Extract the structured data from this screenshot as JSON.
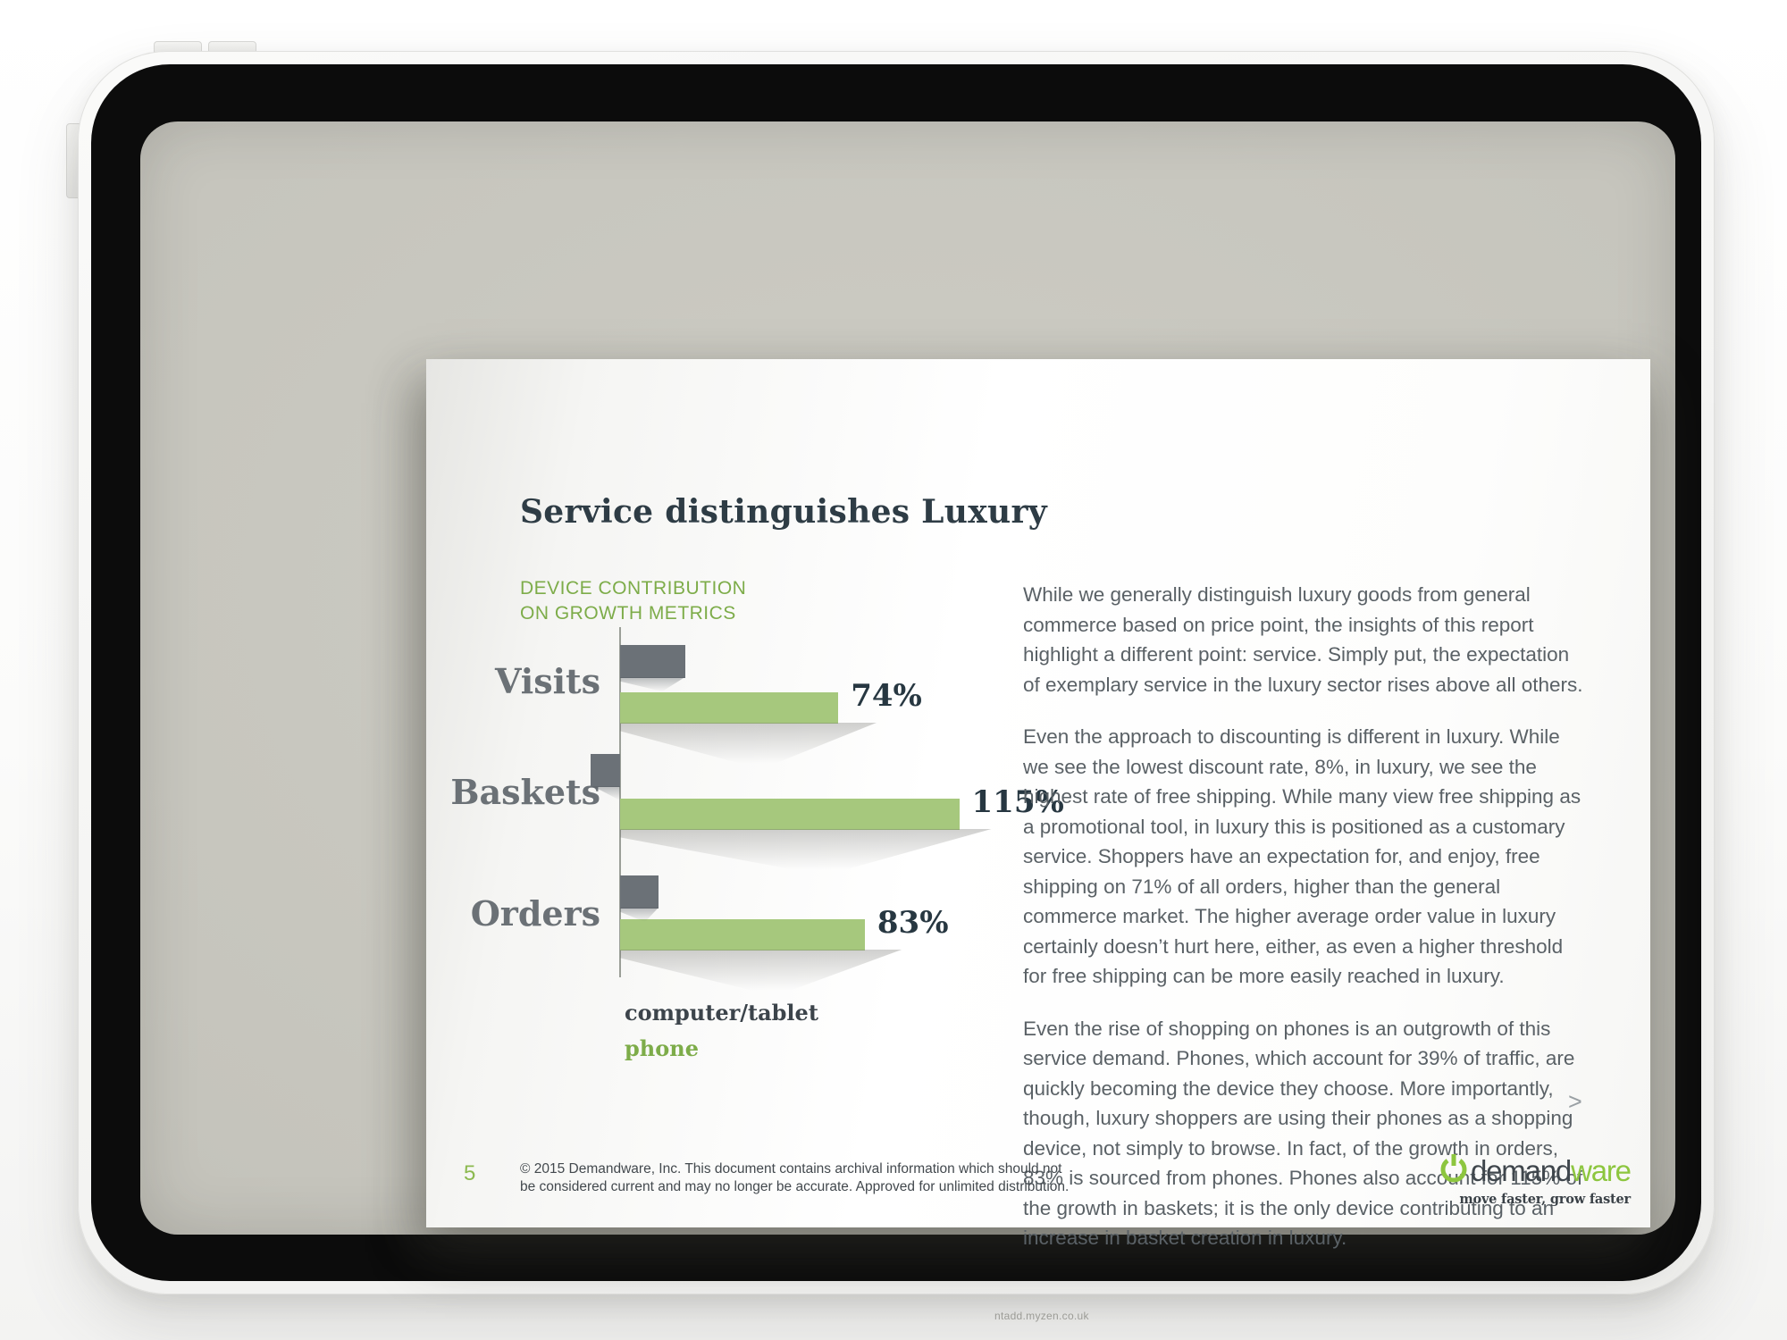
{
  "page": {
    "watermark": "ntadd.myzen.co.uk"
  },
  "slide": {
    "title": "Service distinguishes Luxury",
    "chart": {
      "heading_line1": "DEVICE CONTRIBUTION",
      "heading_line2": "ON GROWTH METRICS",
      "legend": {
        "computer_tablet": "computer/tablet",
        "phone": "phone"
      }
    },
    "chart_data": {
      "type": "bar",
      "orientation": "horizontal",
      "title": "DEVICE CONTRIBUTION ON GROWTH METRICS",
      "categories": [
        "Visits",
        "Baskets",
        "Orders"
      ],
      "series": [
        {
          "name": "computer/tablet",
          "color": "#6b7177",
          "values": [
            22,
            -10,
            13
          ],
          "value_labels": [
            "",
            "",
            ""
          ],
          "note": "bars unlabeled in source; values estimated from bar lengths"
        },
        {
          "name": "phone",
          "color": "#a6c87d",
          "values": [
            74,
            115,
            83
          ],
          "value_labels": [
            "74%",
            "115%",
            "83%"
          ]
        }
      ],
      "xlim": [
        -20,
        125
      ],
      "axis_style": "single vertical zero baseline, no gridlines, no tick labels",
      "legend_position": "bottom-left"
    },
    "body": {
      "paragraphs": [
        "While we generally distinguish luxury goods from general commerce based on price point, the insights of this report highlight a different point: service. Simply put, the expectation of exemplary service in the luxury sector rises above all others.",
        "Even the approach to discounting is different in luxury.  While we see the lowest discount rate, 8%, in luxury, we see the highest rate of free shipping. While many view free shipping as a promotional tool, in luxury this is positioned as a customary service. Shoppers have an expectation for, and enjoy, free shipping on 71% of all orders, higher than the general commerce market. The higher average order value in luxury certainly doesn’t hurt here, either, as even a higher threshold for free shipping can be more easily reached in luxury.",
        "Even the rise of shopping on phones is an outgrowth of this service demand. Phones, which account for 39% of traffic, are quickly becoming the device they choose. More importantly, though, luxury shoppers are using their phones as a shopping device, not simply to browse. In fact, of the growth in orders, 83% is sourced from phones. Phones also account for 115% of the growth in baskets; it is the only device contributing to an increase in basket creation in luxury."
      ],
      "more_indicator": ">"
    },
    "footer": {
      "page_number": "5",
      "copyright_line1": "© 2015 Demandware, Inc. This document contains archival information which should not",
      "copyright_line2": "be considered current and may no longer be accurate. Approved for unlimited distribution."
    },
    "logo": {
      "name_dark": "demand",
      "name_green": "ware",
      "tagline": "move faster, grow faster"
    }
  },
  "colors": {
    "brand_green": "#8dc63f",
    "bar_green": "#a6c87d",
    "bar_gray": "#6b7177",
    "heading_green": "#7dac49",
    "title_dark": "#2e3c45"
  }
}
